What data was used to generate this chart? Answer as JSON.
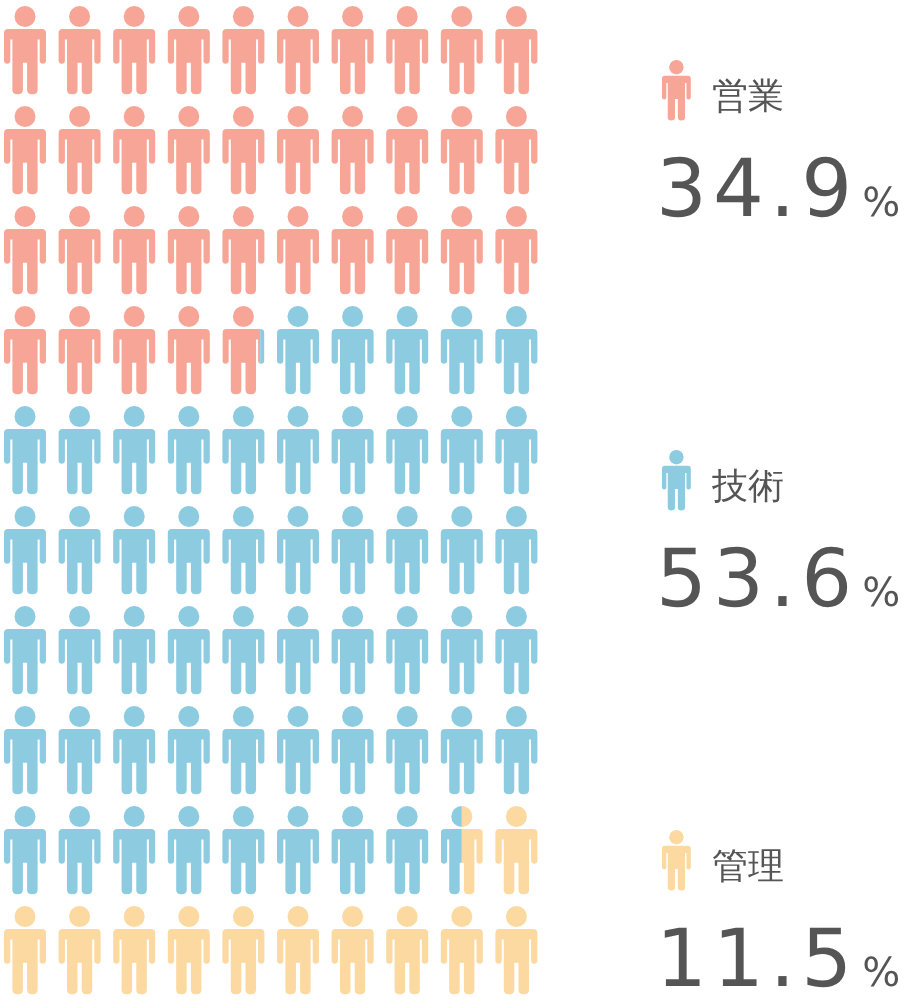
{
  "chart_data": {
    "type": "other",
    "categories": [
      "営業",
      "技術",
      "管理"
    ],
    "values": [
      34.9,
      53.6,
      11.5
    ],
    "value_labels": [
      "34.9%",
      "53.6%",
      "11.5%"
    ],
    "colors": [
      "#f7a597",
      "#8ccbe0",
      "#fbd9a0"
    ]
  }
}
